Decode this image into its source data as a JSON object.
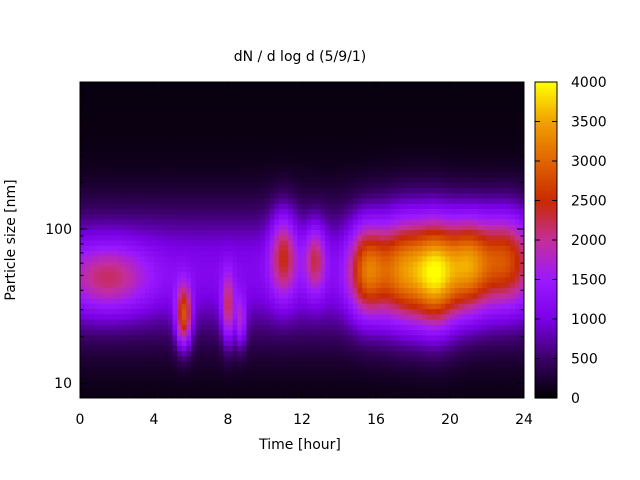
{
  "chart_data": {
    "type": "heatmap",
    "title": "dN / d log d (5/9/1)",
    "xlabel": "Time [hour]",
    "ylabel": "Particle size [nm]",
    "xlim": [
      0,
      24
    ],
    "ylim": [
      8,
      900
    ],
    "y_scale": "log",
    "x_ticks": [
      0,
      4,
      8,
      12,
      16,
      20,
      24
    ],
    "x_tick_labels": [
      "0",
      "4",
      "8",
      "12",
      "16",
      "20",
      "24"
    ],
    "y_ticks": [
      10,
      100
    ],
    "y_tick_labels": [
      "10",
      "100"
    ],
    "colorbar": {
      "min": 0,
      "max": 4000,
      "ticks": [
        0,
        500,
        1000,
        1500,
        2000,
        2500,
        3000,
        3500,
        4000
      ],
      "tick_labels": [
        "0",
        "500",
        "1000",
        "1500",
        "2000",
        "2500",
        "3000",
        "3500",
        "4000"
      ],
      "colormap": [
        "#000000",
        "#3a0066",
        "#7a00e6",
        "#9b19ff",
        "#c42e9a",
        "#c82a00",
        "#e06400",
        "#f0a000",
        "#ffff00"
      ]
    },
    "hotspots": [
      {
        "t": 1.5,
        "d_center": 48,
        "width_h": 1.6,
        "log_width": 0.16,
        "value": 2050
      },
      {
        "t": 5.6,
        "d_center": 27,
        "width_h": 0.3,
        "log_width": 0.14,
        "value": 3100
      },
      {
        "t": 8.0,
        "d_center": 30,
        "width_h": 0.25,
        "log_width": 0.16,
        "value": 2400
      },
      {
        "t": 8.7,
        "d_center": 25,
        "width_h": 0.2,
        "log_width": 0.12,
        "value": 2100
      },
      {
        "t": 11.0,
        "d_center": 70,
        "width_h": 0.5,
        "log_width": 0.2,
        "value": 2400
      },
      {
        "t": 12.7,
        "d_center": 65,
        "width_h": 0.4,
        "log_width": 0.16,
        "value": 2200
      },
      {
        "t": 15.5,
        "d_center": 55,
        "width_h": 0.7,
        "log_width": 0.22,
        "value": 2800
      },
      {
        "t": 17.5,
        "d_center": 55,
        "width_h": 1.0,
        "log_width": 0.25,
        "value": 3100
      },
      {
        "t": 19.3,
        "d_center": 52,
        "width_h": 0.8,
        "log_width": 0.25,
        "value": 3300
      },
      {
        "t": 21.0,
        "d_center": 60,
        "width_h": 0.8,
        "log_width": 0.22,
        "value": 3000
      },
      {
        "t": 23.0,
        "d_center": 65,
        "width_h": 1.0,
        "log_width": 0.22,
        "value": 2700
      }
    ]
  }
}
